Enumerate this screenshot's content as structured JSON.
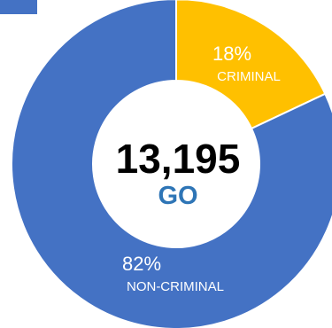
{
  "colors": {
    "criminal": "#ffc000",
    "non_criminal": "#4472c4",
    "center_sub": "#2e75b6",
    "corner_block": "#4472c4"
  },
  "center": {
    "total": "13,195",
    "label": "GO"
  },
  "chart_data": {
    "type": "pie",
    "title": "",
    "slices": [
      {
        "name": "CRIMINAL",
        "value": 18,
        "label": "18%",
        "color": "#ffc000"
      },
      {
        "name": "NON-CRIMINAL",
        "value": 82,
        "label": "82%",
        "color": "#4472c4"
      }
    ],
    "donut": true,
    "start": "12 o'clock",
    "direction": "clockwise"
  }
}
